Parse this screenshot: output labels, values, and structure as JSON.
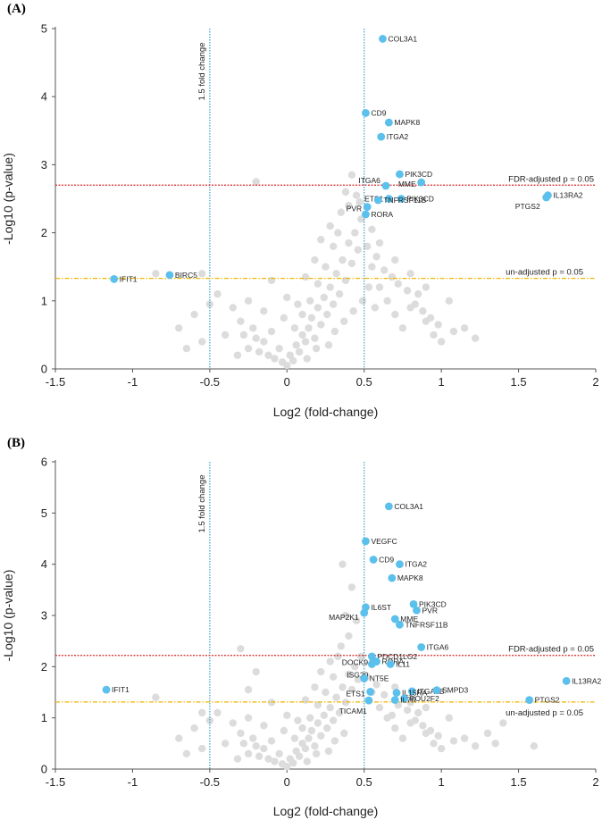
{
  "chart_data": [
    {
      "type": "scatter",
      "panel_label": "(A)",
      "title": "",
      "xlabel": "Log2 (fold-change)",
      "ylabel": "-Log10 (p-value)",
      "xlim": [
        -1.5,
        2
      ],
      "ylim": [
        0,
        5
      ],
      "xticks": [
        "-1.5",
        "-1",
        "-0.5",
        "0",
        "0.5",
        "1",
        "1.5",
        "2"
      ],
      "yticks": [
        "0",
        "1",
        "2",
        "3",
        "4",
        "5"
      ],
      "colors": {
        "highlight": "#5bc0eb",
        "background_points": "#dcdcdc",
        "fdr_line": "#d62728",
        "unadj_line": "#f0b400",
        "fold_line": "#3aa0c8"
      },
      "thresholds": {
        "fold_change_lines": [
          -0.5,
          0.5
        ],
        "fold_change_label": "1.5 fold change",
        "fdr_y": 2.7,
        "fdr_label": "FDR-adjusted p = 0.05",
        "unadjusted_y": 1.33,
        "unadjusted_label": "un-adjusted p = 0.05"
      },
      "labeled_genes": [
        {
          "name": "COL3A1",
          "x": 0.62,
          "y": 4.85
        },
        {
          "name": "CD9",
          "x": 0.51,
          "y": 3.76
        },
        {
          "name": "MAPK8",
          "x": 0.66,
          "y": 3.62
        },
        {
          "name": "ITGA2",
          "x": 0.61,
          "y": 3.41
        },
        {
          "name": "PIK3CD",
          "x": 0.73,
          "y": 2.86
        },
        {
          "name": "MME",
          "x": 0.87,
          "y": 2.74
        },
        {
          "name": "ITGA6",
          "x": 0.64,
          "y": 2.69
        },
        {
          "name": "ETS1",
          "x": 0.66,
          "y": 2.5
        },
        {
          "name": "PIK3CD",
          "x": 0.74,
          "y": 2.5
        },
        {
          "name": "TNFRSF11B",
          "x": 0.59,
          "y": 2.48
        },
        {
          "name": "PVR",
          "x": 0.52,
          "y": 2.38
        },
        {
          "name": "RORA",
          "x": 0.51,
          "y": 2.27
        },
        {
          "name": "IL13RA2",
          "x": 1.69,
          "y": 2.55
        },
        {
          "name": "PTGS2",
          "x": 1.68,
          "y": 2.52
        },
        {
          "name": "BIRC5",
          "x": -0.76,
          "y": 1.38
        },
        {
          "name": "IFIT1",
          "x": -1.12,
          "y": 1.32
        }
      ],
      "background_points": [
        [
          -0.35,
          0.9
        ],
        [
          -0.3,
          0.7
        ],
        [
          -0.28,
          0.5
        ],
        [
          -0.25,
          0.3
        ],
        [
          -0.22,
          0.6
        ],
        [
          -0.2,
          0.45
        ],
        [
          -0.18,
          0.25
        ],
        [
          -0.15,
          0.4
        ],
        [
          -0.12,
          0.2
        ],
        [
          -0.1,
          0.55
        ],
        [
          -0.08,
          0.15
        ],
        [
          -0.05,
          0.3
        ],
        [
          -0.03,
          0.1
        ],
        [
          0.0,
          0.05
        ],
        [
          0.02,
          0.2
        ],
        [
          0.04,
          0.12
        ],
        [
          0.06,
          0.35
        ],
        [
          0.08,
          0.25
        ],
        [
          0.1,
          0.5
        ],
        [
          0.12,
          0.4
        ],
        [
          0.14,
          0.6
        ],
        [
          0.16,
          0.75
        ],
        [
          0.18,
          0.45
        ],
        [
          0.2,
          0.9
        ],
        [
          0.22,
          0.65
        ],
        [
          0.24,
          1.05
        ],
        [
          0.26,
          0.8
        ],
        [
          0.28,
          1.2
        ],
        [
          0.3,
          0.95
        ],
        [
          0.32,
          1.4
        ],
        [
          0.34,
          1.1
        ],
        [
          0.36,
          1.6
        ],
        [
          0.38,
          1.3
        ],
        [
          0.4,
          1.85
        ],
        [
          0.42,
          1.55
        ],
        [
          0.44,
          2.0
        ],
        [
          0.46,
          1.75
        ],
        [
          0.48,
          2.2
        ],
        [
          0.35,
          2.3
        ],
        [
          0.3,
          1.8
        ],
        [
          0.25,
          1.5
        ],
        [
          0.2,
          1.25
        ],
        [
          0.15,
          1.0
        ],
        [
          0.1,
          0.8
        ],
        [
          0.05,
          0.6
        ],
        [
          0.4,
          2.4
        ],
        [
          0.45,
          2.55
        ],
        [
          0.38,
          2.6
        ],
        [
          0.55,
          1.5
        ],
        [
          0.6,
          1.2
        ],
        [
          0.65,
          1.0
        ],
        [
          0.7,
          0.8
        ],
        [
          0.75,
          0.6
        ],
        [
          0.8,
          0.9
        ],
        [
          0.85,
          1.1
        ],
        [
          0.9,
          0.7
        ],
        [
          0.95,
          0.5
        ],
        [
          1.0,
          0.4
        ],
        [
          0.55,
          2.05
        ],
        [
          0.6,
          1.85
        ],
        [
          0.7,
          1.6
        ],
        [
          0.8,
          1.4
        ],
        [
          0.9,
          1.2
        ],
        [
          1.05,
          1.0
        ],
        [
          1.15,
          0.6
        ],
        [
          1.22,
          0.45
        ],
        [
          -0.5,
          0.95
        ],
        [
          -0.6,
          0.8
        ],
        [
          -0.7,
          0.6
        ],
        [
          -0.45,
          1.1
        ],
        [
          -0.4,
          0.5
        ],
        [
          -0.55,
          0.4
        ],
        [
          -0.65,
          0.3
        ],
        [
          -0.85,
          1.4
        ],
        [
          -0.55,
          1.4
        ],
        [
          -0.2,
          2.75
        ],
        [
          -0.1,
          1.3
        ],
        [
          0.0,
          1.05
        ],
        [
          -0.02,
          0.75
        ],
        [
          0.12,
          1.35
        ],
        [
          0.18,
          1.6
        ],
        [
          0.22,
          1.9
        ],
        [
          0.28,
          2.1
        ],
        [
          0.33,
          2.0
        ],
        [
          0.42,
          2.85
        ],
        [
          0.47,
          2.45
        ],
        [
          0.52,
          1.8
        ],
        [
          0.58,
          1.65
        ],
        [
          0.63,
          1.45
        ],
        [
          0.68,
          1.35
        ],
        [
          0.72,
          1.25
        ],
        [
          0.78,
          1.15
        ],
        [
          0.83,
          0.95
        ],
        [
          0.88,
          0.85
        ],
        [
          0.93,
          0.75
        ],
        [
          0.98,
          0.65
        ],
        [
          1.08,
          0.55
        ],
        [
          -0.15,
          0.85
        ],
        [
          -0.25,
          1.0
        ],
        [
          -0.32,
          0.2
        ],
        [
          0.07,
          0.95
        ],
        [
          0.13,
          0.15
        ],
        [
          0.19,
          0.3
        ],
        [
          0.27,
          0.35
        ],
        [
          0.31,
          0.55
        ],
        [
          0.37,
          0.7
        ],
        [
          0.43,
          0.85
        ],
        [
          0.49,
          1.0
        ],
        [
          0.53,
          1.2
        ],
        [
          0.57,
          0.9
        ]
      ]
    },
    {
      "type": "scatter",
      "panel_label": "(B)",
      "title": "",
      "xlabel": "Log2 (fold-change)",
      "ylabel": "-Log10 (p-value)",
      "xlim": [
        -1.5,
        2
      ],
      "ylim": [
        0,
        6
      ],
      "xticks": [
        "-1.5",
        "-1",
        "-0.5",
        "0",
        "0.5",
        "1",
        "1.5",
        "2"
      ],
      "yticks": [
        "0",
        "1",
        "2",
        "3",
        "4",
        "5",
        "6"
      ],
      "colors": {
        "highlight": "#5bc0eb",
        "background_points": "#dcdcdc",
        "fdr_line": "#d62728",
        "unadj_line": "#f0b400",
        "fold_line": "#3aa0c8"
      },
      "thresholds": {
        "fold_change_lines": [
          -0.5,
          0.5
        ],
        "fold_change_label": "1.5 fold change",
        "fdr_y": 2.22,
        "fdr_label": "FDR-adjusted p = 0.05",
        "unadjusted_y": 1.31,
        "unadjusted_label": "un-adjusted p = 0.05"
      },
      "labeled_genes": [
        {
          "name": "COL3A1",
          "x": 0.66,
          "y": 5.13
        },
        {
          "name": "VEGFC",
          "x": 0.51,
          "y": 4.45
        },
        {
          "name": "CD9",
          "x": 0.56,
          "y": 4.09
        },
        {
          "name": "ITGA2",
          "x": 0.73,
          "y": 4.0
        },
        {
          "name": "MAPK8",
          "x": 0.68,
          "y": 3.73
        },
        {
          "name": "PIK3CD",
          "x": 0.82,
          "y": 3.22
        },
        {
          "name": "IL6ST",
          "x": 0.51,
          "y": 3.16
        },
        {
          "name": "PVR",
          "x": 0.84,
          "y": 3.1
        },
        {
          "name": "MAP2K1",
          "x": 0.5,
          "y": 3.05
        },
        {
          "name": "MME",
          "x": 0.7,
          "y": 2.93
        },
        {
          "name": "TNFRSF11B",
          "x": 0.73,
          "y": 2.82
        },
        {
          "name": "ITGA6",
          "x": 0.87,
          "y": 2.38
        },
        {
          "name": "PDCD1LG2",
          "x": 0.55,
          "y": 2.2
        },
        {
          "name": "DOCK9",
          "x": 0.56,
          "y": 2.12
        },
        {
          "name": "RORA",
          "x": 0.58,
          "y": 2.1
        },
        {
          "name": "ISG20",
          "x": 0.55,
          "y": 2.05
        },
        {
          "name": "IL11",
          "x": 0.67,
          "y": 2.05
        },
        {
          "name": "NT5E",
          "x": 0.5,
          "y": 1.77
        },
        {
          "name": "ITGA2B",
          "x": 0.81,
          "y": 1.52
        },
        {
          "name": "IL15RA",
          "x": 0.71,
          "y": 1.49
        },
        {
          "name": "ETS1",
          "x": 0.54,
          "y": 1.51
        },
        {
          "name": "SMPD3",
          "x": 0.97,
          "y": 1.54
        },
        {
          "name": "POU2F2",
          "x": 0.76,
          "y": 1.38
        },
        {
          "name": "IL7R",
          "x": 0.7,
          "y": 1.35
        },
        {
          "name": "TICAM1",
          "x": 0.53,
          "y": 1.34
        },
        {
          "name": "IL13RA2",
          "x": 1.81,
          "y": 1.72
        },
        {
          "name": "PTGS2",
          "x": 1.57,
          "y": 1.35
        },
        {
          "name": "IFIT1",
          "x": -1.17,
          "y": 1.55
        }
      ],
      "background_points": [
        [
          -0.35,
          0.9
        ],
        [
          -0.3,
          0.7
        ],
        [
          -0.28,
          0.5
        ],
        [
          -0.25,
          0.3
        ],
        [
          -0.22,
          0.6
        ],
        [
          -0.2,
          0.45
        ],
        [
          -0.18,
          0.25
        ],
        [
          -0.15,
          0.4
        ],
        [
          -0.12,
          0.2
        ],
        [
          -0.1,
          0.55
        ],
        [
          -0.08,
          0.15
        ],
        [
          -0.05,
          0.3
        ],
        [
          -0.03,
          0.1
        ],
        [
          0.0,
          0.05
        ],
        [
          0.02,
          0.2
        ],
        [
          0.04,
          0.12
        ],
        [
          0.06,
          0.35
        ],
        [
          0.08,
          0.25
        ],
        [
          0.1,
          0.5
        ],
        [
          0.12,
          0.4
        ],
        [
          0.14,
          0.6
        ],
        [
          0.16,
          0.75
        ],
        [
          0.18,
          0.45
        ],
        [
          0.2,
          0.9
        ],
        [
          0.22,
          0.65
        ],
        [
          0.24,
          1.05
        ],
        [
          0.26,
          0.8
        ],
        [
          0.28,
          1.2
        ],
        [
          0.3,
          0.95
        ],
        [
          0.32,
          1.4
        ],
        [
          0.34,
          1.1
        ],
        [
          0.36,
          1.6
        ],
        [
          0.38,
          1.3
        ],
        [
          0.4,
          1.85
        ],
        [
          0.42,
          1.55
        ],
        [
          0.44,
          2.0
        ],
        [
          0.46,
          1.75
        ],
        [
          0.48,
          2.2
        ],
        [
          0.35,
          2.4
        ],
        [
          0.3,
          1.8
        ],
        [
          0.25,
          1.5
        ],
        [
          0.2,
          1.25
        ],
        [
          0.15,
          1.0
        ],
        [
          0.1,
          0.8
        ],
        [
          0.05,
          0.6
        ],
        [
          0.4,
          2.6
        ],
        [
          0.45,
          2.9
        ],
        [
          0.38,
          3.0
        ],
        [
          0.42,
          3.55
        ],
        [
          0.36,
          4.0
        ],
        [
          0.55,
          1.5
        ],
        [
          0.6,
          1.2
        ],
        [
          0.65,
          1.0
        ],
        [
          0.7,
          0.8
        ],
        [
          0.75,
          0.6
        ],
        [
          0.8,
          0.9
        ],
        [
          0.85,
          1.1
        ],
        [
          0.9,
          0.7
        ],
        [
          0.95,
          0.5
        ],
        [
          1.0,
          0.4
        ],
        [
          0.7,
          1.6
        ],
        [
          0.8,
          1.3
        ],
        [
          0.9,
          1.2
        ],
        [
          1.05,
          1.0
        ],
        [
          1.15,
          0.6
        ],
        [
          1.22,
          0.45
        ],
        [
          1.3,
          0.7
        ],
        [
          1.4,
          0.9
        ],
        [
          1.35,
          0.5
        ],
        [
          1.6,
          0.45
        ],
        [
          -0.5,
          0.95
        ],
        [
          -0.6,
          0.8
        ],
        [
          -0.7,
          0.6
        ],
        [
          -0.45,
          1.1
        ],
        [
          -0.4,
          0.5
        ],
        [
          -0.55,
          0.4
        ],
        [
          -0.65,
          0.3
        ],
        [
          -0.85,
          1.4
        ],
        [
          -0.55,
          1.1
        ],
        [
          -0.3,
          2.35
        ],
        [
          -0.1,
          1.3
        ],
        [
          0.0,
          1.05
        ],
        [
          -0.02,
          0.75
        ],
        [
          0.12,
          1.35
        ],
        [
          0.18,
          1.6
        ],
        [
          0.22,
          1.9
        ],
        [
          0.28,
          2.1
        ],
        [
          0.33,
          2.2
        ],
        [
          -0.2,
          1.9
        ],
        [
          -0.25,
          1.55
        ],
        [
          0.52,
          1.8
        ],
        [
          0.58,
          1.65
        ],
        [
          0.63,
          1.45
        ],
        [
          0.68,
          1.05
        ],
        [
          0.72,
          1.25
        ],
        [
          0.78,
          1.15
        ],
        [
          0.83,
          0.95
        ],
        [
          0.88,
          0.85
        ],
        [
          0.93,
          0.75
        ],
        [
          0.98,
          0.65
        ],
        [
          1.08,
          0.55
        ],
        [
          -0.15,
          0.85
        ],
        [
          -0.25,
          1.0
        ],
        [
          -0.32,
          0.2
        ],
        [
          0.07,
          0.95
        ],
        [
          0.13,
          0.15
        ],
        [
          0.19,
          0.3
        ],
        [
          0.27,
          0.35
        ],
        [
          0.31,
          0.55
        ],
        [
          0.37,
          0.7
        ]
      ]
    }
  ]
}
